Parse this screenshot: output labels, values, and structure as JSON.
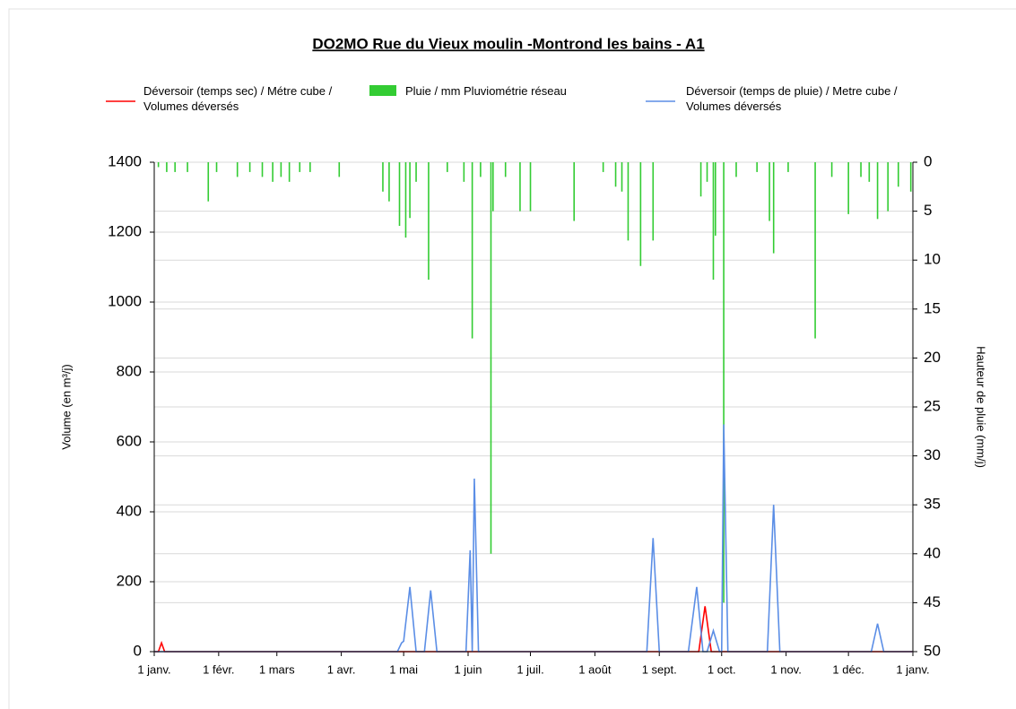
{
  "chart_data": {
    "type": "line",
    "title": "DO2MO  Rue du Vieux moulin -Montrond les bains - A1",
    "y_label": "Volume (en m³/j)",
    "y2_label": "Hauteur de pluie (mm/j)",
    "xlim": [
      0,
      365
    ],
    "xticks": [
      {
        "value": 0,
        "label": "1 janv."
      },
      {
        "value": 31,
        "label": "1 févr."
      },
      {
        "value": 59,
        "label": "1 mars"
      },
      {
        "value": 90,
        "label": "1 avr."
      },
      {
        "value": 120,
        "label": "1 mai"
      },
      {
        "value": 151,
        "label": "1 juin"
      },
      {
        "value": 181,
        "label": "1 juil."
      },
      {
        "value": 212,
        "label": "1 août"
      },
      {
        "value": 243,
        "label": "1 sept."
      },
      {
        "value": 273,
        "label": "1 oct."
      },
      {
        "value": 304,
        "label": "1 nov."
      },
      {
        "value": 334,
        "label": "1 déc."
      },
      {
        "value": 365,
        "label": "1 janv."
      }
    ],
    "ylim": [
      0,
      1400
    ],
    "yticks": [
      0,
      200,
      400,
      600,
      800,
      1000,
      1200,
      1400
    ],
    "y2lim": [
      50,
      0
    ],
    "y2ticks": [
      0,
      5,
      10,
      15,
      20,
      25,
      30,
      35,
      40,
      45,
      50
    ],
    "grid": true,
    "series": [
      {
        "name": "Déversoir (temps sec) / Métre cube / Volumes déversés",
        "type": "line",
        "color": "#ff0000",
        "x": [
          0,
          2,
          3.5,
          5,
          262,
          265,
          268,
          365
        ],
        "values": [
          0,
          0,
          25,
          0,
          0,
          130,
          0,
          0
        ]
      },
      {
        "name": "Pluie / mm Pluviométrie réseau",
        "type": "bar",
        "axis": "y2",
        "color": "#33cc33",
        "x": [
          2,
          6,
          10,
          16,
          26,
          30,
          40,
          46,
          52,
          57,
          61,
          65,
          70,
          75,
          89,
          110,
          113,
          118,
          121,
          123,
          126,
          132,
          141,
          149,
          153,
          157,
          162,
          163,
          169,
          176,
          181,
          202,
          216,
          222,
          225,
          228,
          234,
          240,
          263,
          266,
          269,
          270,
          274,
          280,
          290,
          296,
          298,
          305,
          318,
          326,
          334,
          340,
          344,
          348,
          353,
          358,
          364
        ],
        "values": [
          0.5,
          1,
          1,
          1,
          4,
          1,
          1.5,
          1,
          1.5,
          2,
          1.5,
          2,
          1,
          1,
          1.5,
          3,
          4,
          6.5,
          7.7,
          5.7,
          2,
          12,
          1,
          2,
          18,
          1.5,
          40,
          5,
          1.5,
          5,
          5,
          6,
          1,
          2.5,
          3,
          8,
          10.6,
          8,
          3.5,
          2,
          12,
          7.5,
          45,
          1.5,
          1,
          6,
          9.3,
          1,
          18,
          1.5,
          5.3,
          1.5,
          2,
          5.8,
          5,
          2.5,
          3
        ]
      },
      {
        "name": "Déversoir (temps de pluie) / Metre cube / Volumes déversés",
        "type": "line",
        "color": "#5b8ee6",
        "x": [
          0,
          117,
          119,
          120,
          123,
          126,
          130,
          133,
          136,
          150,
          152,
          153,
          154,
          156,
          237,
          240,
          243,
          257,
          261,
          264,
          266,
          269,
          272,
          273,
          274,
          276,
          295,
          298,
          301,
          345,
          348,
          351,
          365
        ],
        "values": [
          0,
          0,
          25,
          30,
          185,
          0,
          0,
          175,
          0,
          0,
          290,
          0,
          495,
          0,
          0,
          325,
          0,
          0,
          185,
          0,
          0,
          60,
          0,
          0,
          650,
          0,
          0,
          420,
          0,
          0,
          80,
          0,
          0
        ]
      }
    ]
  }
}
